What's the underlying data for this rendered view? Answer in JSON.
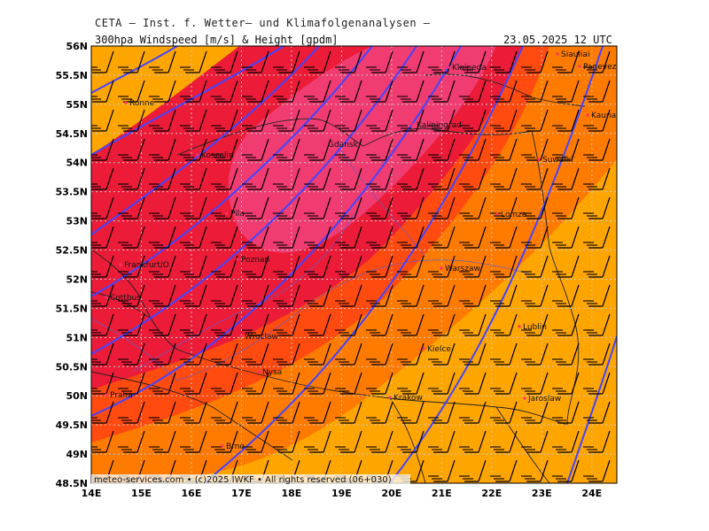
{
  "header": {
    "title": "CETA – Inst. f. Wetter– und Klimafolgenanalysen –",
    "param": "300hpa Windspeed [m/s] & Height [gpdm]",
    "valid": "23.05.2025 12 UTC"
  },
  "axes": {
    "lat_labels": [
      "56N",
      "55.5N",
      "55N",
      "54.5N",
      "54N",
      "53.5N",
      "53N",
      "52.5N",
      "52N",
      "51.5N",
      "51N",
      "50.5N",
      "50N",
      "49.5N",
      "49N",
      "48.5N"
    ],
    "lon_labels": [
      "14E",
      "15E",
      "16E",
      "17E",
      "18E",
      "19E",
      "20E",
      "21E",
      "22E",
      "23E",
      "24E"
    ]
  },
  "cities": [
    {
      "name": "Klaipeda"
    },
    {
      "name": "Siauliai"
    },
    {
      "name": "Panevezys"
    },
    {
      "name": "Kaunas"
    },
    {
      "name": "Ronne"
    },
    {
      "name": "Kaliningrad"
    },
    {
      "name": "Gdansk"
    },
    {
      "name": "Koszalin"
    },
    {
      "name": "Suwalki"
    },
    {
      "name": "Lomza"
    },
    {
      "name": "Pila"
    },
    {
      "name": "Poznan"
    },
    {
      "name": "Frankfurt/O"
    },
    {
      "name": "Warszaw"
    },
    {
      "name": "Cottbus"
    },
    {
      "name": "Lublin"
    },
    {
      "name": "Wroclaw"
    },
    {
      "name": "Kielce"
    },
    {
      "name": "Nysa"
    },
    {
      "name": "Praha"
    },
    {
      "name": "Krakow"
    },
    {
      "name": "Jaroslaw"
    },
    {
      "name": "Brno"
    }
  ],
  "credit": "meteo-services.com • (c)2025 IWKF • All rights reserved (06+030)",
  "colors": {
    "band_outer": "#ffa500",
    "band_2": "#ff7b00",
    "band_3": "#ff4a10",
    "band_4": "#ec1c38",
    "band_core": "#f03c70",
    "contour": "#4444ff",
    "barb": "#000000"
  }
}
